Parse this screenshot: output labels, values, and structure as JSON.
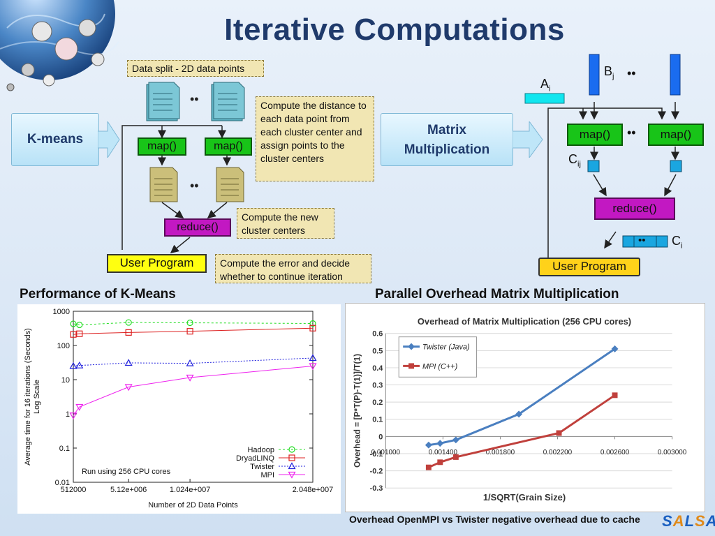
{
  "slide": {
    "title": "Iterative Computations",
    "footer_note": "Overhead OpenMPI vs Twister negative overhead due to cache",
    "logo": "SALSA"
  },
  "kmeans_diagram": {
    "input_label": "K-means",
    "data_split_note": "Data split - 2D data points",
    "dots": "••",
    "map_label": "map()",
    "reduce_label": "reduce()",
    "user_program_label": "User Program",
    "map_note": "Compute the distance to each data point from each cluster center and assign points to the cluster centers",
    "reduce_note": "Compute the new cluster centers",
    "user_note": "Compute the error and decide whether to continue iteration"
  },
  "matrix_diagram": {
    "input_label_line1": "Matrix",
    "input_label_line2": "Multiplication",
    "a_label": "A",
    "a_sub": "i",
    "b_label": "B",
    "b_sub": "j",
    "c_label": "C",
    "cij_sub": "ij",
    "ci_sub": "i",
    "dots": "••",
    "map_label": "map()",
    "reduce_label": "reduce()",
    "user_program_label": "User Program"
  },
  "sections": {
    "left": "Performance of K-Means",
    "right": "Parallel Overhead  Matrix Multiplication"
  },
  "colors": {
    "hadoop": "#22dd22",
    "dryad": "#dd2222",
    "twister_left": "#2222dd",
    "mpi_left": "#ee22ee",
    "twister_right": "#4a7fc0",
    "mpi_right": "#c0403c"
  },
  "chart_data": [
    {
      "type": "line",
      "title": "",
      "xlabel": "Number of 2D Data Points",
      "ylabel_line1": "Average time for 16 iterations (Seconds)",
      "ylabel_line2": "Log Scale",
      "y_scale": "log",
      "ylim": [
        0.01,
        1000
      ],
      "y_ticks": [
        "1000",
        "100",
        "10",
        "1",
        "0.1",
        "0.01"
      ],
      "x_ticks": [
        {
          "value": 512000,
          "label": "512000"
        },
        {
          "value": 5120000,
          "label": "5.12e+006"
        },
        {
          "value": 10240000,
          "label": "1.024e+007"
        },
        {
          "value": 20480000,
          "label": "2.048e+007"
        }
      ],
      "annotation": "Run using 256 CPU cores",
      "legend_position": "bottom-right",
      "series": [
        {
          "name": "Hadoop",
          "x": [
            512000,
            1024000,
            5120000,
            10240000,
            20480000
          ],
          "y": [
            430,
            400,
            470,
            460,
            440
          ]
        },
        {
          "name": "DryadLINQ",
          "x": [
            512000,
            1024000,
            5120000,
            10240000,
            20480000
          ],
          "y": [
            210,
            220,
            240,
            260,
            320
          ]
        },
        {
          "name": "Twister",
          "x": [
            512000,
            1024000,
            5120000,
            10240000,
            20480000
          ],
          "y": [
            25,
            26,
            31,
            30,
            43
          ]
        },
        {
          "name": "MPI",
          "x": [
            512000,
            1024000,
            5120000,
            10240000,
            20480000
          ],
          "y": [
            0.9,
            1.6,
            6.1,
            11.5,
            25
          ]
        }
      ]
    },
    {
      "type": "line",
      "title": "Overhead of Matrix Multiplication (256 CPU cores)",
      "xlabel": "1/SQRT(Grain Size)",
      "ylabel": "Overhead = [P*T(P)-T(1)]/T(1)",
      "xlim": [
        0.001,
        0.003
      ],
      "ylim": [
        -0.3,
        0.6
      ],
      "y_ticks": [
        "0.6",
        "0.5",
        "0.4",
        "0.3",
        "0.2",
        "0.1",
        "0",
        "-0.1",
        "-0.2",
        "-0.3"
      ],
      "x_ticks": [
        "0.001000",
        "0.001400",
        "0.001800",
        "0.002200",
        "0.002600",
        "0.003000"
      ],
      "legend_position": "top-left",
      "series": [
        {
          "name": "Twister (Java)",
          "x": [
            0.0013,
            0.00138,
            0.00149,
            0.00193,
            0.0026
          ],
          "y": [
            -0.05,
            -0.04,
            -0.02,
            0.13,
            0.51
          ]
        },
        {
          "name": "MPI (C++)",
          "x": [
            0.0013,
            0.00138,
            0.00149,
            0.00221,
            0.0026
          ],
          "y": [
            -0.18,
            -0.15,
            -0.12,
            0.02,
            0.24
          ]
        }
      ]
    }
  ]
}
